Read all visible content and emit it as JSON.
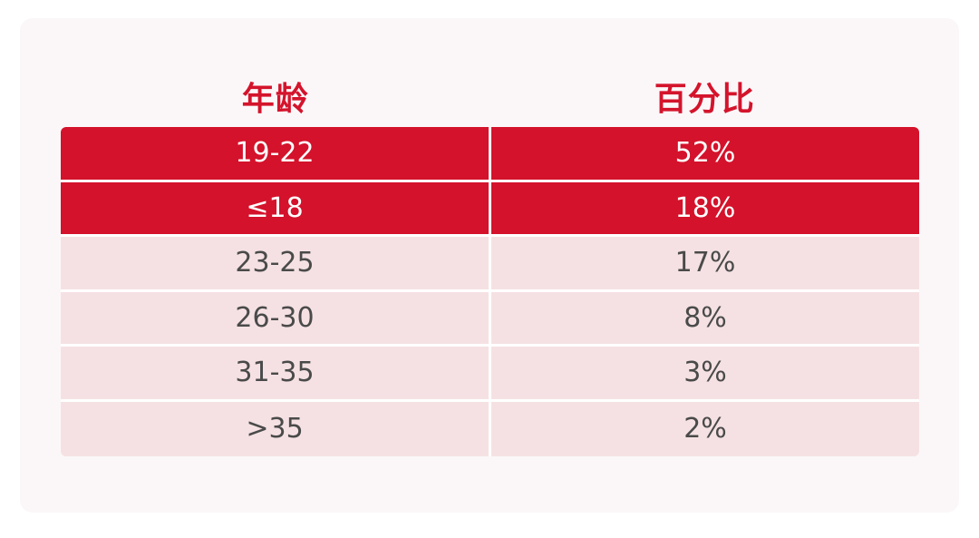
{
  "table": {
    "headers": [
      "年龄",
      "百分比"
    ],
    "rows": [
      {
        "age": "19-22",
        "percent": "52%",
        "highlight": true
      },
      {
        "age": "≤18",
        "percent": "18%",
        "highlight": true
      },
      {
        "age": "23-25",
        "percent": "17%",
        "highlight": false
      },
      {
        "age": "26-30",
        "percent": "8%",
        "highlight": false
      },
      {
        "age": "31-35",
        "percent": "3%",
        "highlight": false
      },
      {
        "age": ">35",
        "percent": "2%",
        "highlight": false
      }
    ]
  },
  "colors": {
    "accent": "#d4122b",
    "row_bg": "#f5e1e3",
    "card_bg": "#fbf7f9"
  }
}
